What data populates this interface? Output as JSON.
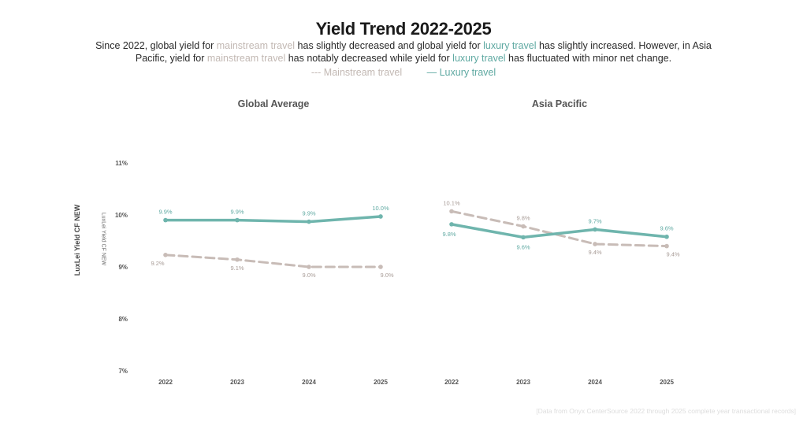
{
  "header": {
    "title": "Yield Trend 2022-2025",
    "subtitle_parts": [
      {
        "text": "Since 2022, global yield for ",
        "style": "plain"
      },
      {
        "text": "mainstream travel",
        "style": "main"
      },
      {
        "text": " has slightly decreased and global yield for ",
        "style": "plain"
      },
      {
        "text": "luxury travel",
        "style": "lux"
      },
      {
        "text": " has slightly increased. However, in Asia Pacific, yield for ",
        "style": "plain"
      },
      {
        "text": "mainstream travel",
        "style": "main"
      },
      {
        "text": " has notably decreased while yield for ",
        "style": "plain"
      },
      {
        "text": "luxury travel",
        "style": "lux"
      },
      {
        "text": " has fluctuated with minor net change.",
        "style": "plain"
      }
    ]
  },
  "legend": {
    "mainstream": "--- Mainstream travel",
    "luxury": "— Luxury travel"
  },
  "axis": {
    "ylabel_outer": "LuxLei Yield CF NEW",
    "ylabel_inner": "LuxLei Yield CF NEW"
  },
  "footnote": "[Data from Onyx CenterSource 2022 through 2025 complete year transactional records]",
  "colors": {
    "mainstream": "#c8bcb7",
    "luxury": "#6fb5ad",
    "luxury_label": "#5fa9a2",
    "mainstream_label": "#a89c97"
  },
  "chart_data": [
    {
      "type": "line",
      "title": "Global Average",
      "categories": [
        "2022",
        "2023",
        "2024",
        "2025"
      ],
      "ylabel": "LuxLei Yield CF NEW",
      "ylim": [
        7,
        11
      ],
      "yticks": [
        "7%",
        "8%",
        "9%",
        "10%",
        "11%"
      ],
      "ytick_values": [
        7,
        8,
        9,
        10,
        11
      ],
      "grid": false,
      "legend": "top-center",
      "series": [
        {
          "name": "Mainstream travel",
          "style": "dashed",
          "values": [
            9.23,
            9.14,
            9.0,
            9.0
          ],
          "labels": [
            "9.2%",
            "9.1%",
            "9.0%",
            "9.0%"
          ]
        },
        {
          "name": "Luxury travel",
          "style": "solid",
          "values": [
            9.9,
            9.9,
            9.87,
            9.97
          ],
          "labels": [
            "9.9%",
            "9.9%",
            "9.9%",
            "10.0%"
          ]
        }
      ]
    },
    {
      "type": "line",
      "title": "Asia Pacific",
      "categories": [
        "2022",
        "2023",
        "2024",
        "2025"
      ],
      "ylim": [
        7,
        11
      ],
      "grid": false,
      "series": [
        {
          "name": "Mainstream travel",
          "style": "dashed",
          "values": [
            10.07,
            9.78,
            9.44,
            9.4
          ],
          "labels": [
            "10.1%",
            "9.8%",
            "9.4%",
            "9.4%"
          ]
        },
        {
          "name": "Luxury travel",
          "style": "solid",
          "values": [
            9.82,
            9.57,
            9.72,
            9.58
          ],
          "labels": [
            "9.8%",
            "9.6%",
            "9.7%",
            "9.6%"
          ]
        }
      ]
    }
  ]
}
